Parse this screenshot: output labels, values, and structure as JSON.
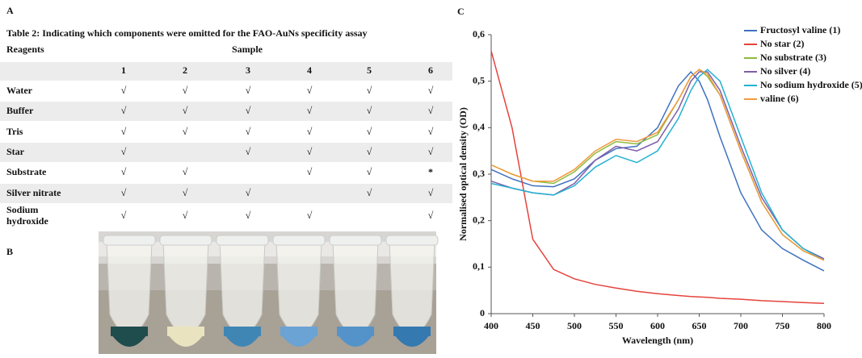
{
  "table": {
    "label": "A",
    "title": "Table 2: Indicating which components were omitted for the FAO-AuNs specificity assay",
    "row_header": "Reagents",
    "column_group": "Sample",
    "columns": [
      "1",
      "2",
      "3",
      "4",
      "5",
      "6"
    ],
    "rows": [
      {
        "name": "Water",
        "cells": [
          "√",
          "√",
          "√",
          "√",
          "√",
          "√"
        ]
      },
      {
        "name": "Buffer",
        "cells": [
          "√",
          "√",
          "√",
          "√",
          "√",
          "√"
        ]
      },
      {
        "name": "Tris",
        "cells": [
          "√",
          "√",
          "√",
          "√",
          "√",
          "√"
        ]
      },
      {
        "name": "Star",
        "cells": [
          "√",
          null,
          "√",
          "√",
          "√",
          "√"
        ]
      },
      {
        "name": "Substrate",
        "cells": [
          "√",
          "√",
          null,
          "√",
          "√",
          "*"
        ]
      },
      {
        "name": "Silver nitrate",
        "cells": [
          "√",
          "√",
          "√",
          null,
          "√",
          "√"
        ]
      },
      {
        "name": "Sodium hydroxide",
        "cells": [
          "√",
          "√",
          "√",
          "√",
          null,
          "√"
        ]
      }
    ]
  },
  "photo": {
    "label": "B"
  },
  "chart_data": {
    "type": "line",
    "label": "C",
    "x_label": "Wavelength (nm)",
    "y_label": "Normalised optical density (OD)",
    "x": [
      400,
      425,
      450,
      475,
      500,
      525,
      550,
      575,
      600,
      625,
      640,
      650,
      660,
      675,
      700,
      725,
      750,
      775,
      800
    ],
    "xlim": [
      400,
      800
    ],
    "xticks": [
      400,
      450,
      500,
      550,
      600,
      650,
      700,
      750,
      800
    ],
    "ylim": [
      0,
      0.6
    ],
    "yticks": [
      0,
      {
        "value": 0.1,
        "label": "0,1"
      },
      {
        "value": 0.2,
        "label": "0,2"
      },
      {
        "value": 0.3,
        "label": "0,3"
      },
      {
        "value": 0.4,
        "label": "0,4"
      },
      {
        "value": 0.5,
        "label": "0,5"
      },
      {
        "value": 0.6,
        "label": "0,6"
      }
    ],
    "grid": false,
    "legend": "top-right",
    "series": [
      {
        "name": "Fructosyl valine (1)",
        "color": "#3f72c0",
        "values": [
          0.31,
          0.29,
          0.275,
          0.273,
          0.29,
          0.33,
          0.355,
          0.36,
          0.4,
          0.49,
          0.52,
          0.5,
          0.46,
          0.38,
          0.26,
          0.18,
          0.14,
          0.115,
          0.092
        ]
      },
      {
        "name": "No star (2)",
        "color": "#e5433d",
        "values": [
          0.565,
          0.4,
          0.16,
          0.095,
          0.075,
          0.063,
          0.055,
          0.048,
          0.043,
          0.039,
          0.037,
          0.036,
          0.035,
          0.033,
          0.031,
          0.028,
          0.026,
          0.024,
          0.022
        ]
      },
      {
        "name": "No substrate (3)",
        "color": "#8dbb3e",
        "values": [
          0.32,
          0.3,
          0.285,
          0.28,
          0.305,
          0.345,
          0.37,
          0.365,
          0.385,
          0.46,
          0.51,
          0.525,
          0.51,
          0.47,
          0.35,
          0.24,
          0.17,
          0.135,
          0.115
        ]
      },
      {
        "name": "No silver (4)",
        "color": "#7e5ea8",
        "values": [
          0.285,
          0.27,
          0.26,
          0.255,
          0.28,
          0.33,
          0.36,
          0.35,
          0.37,
          0.44,
          0.5,
          0.52,
          0.52,
          0.48,
          0.36,
          0.25,
          0.18,
          0.14,
          0.118
        ]
      },
      {
        "name": "No sodium hydroxide (5)",
        "color": "#22b1d2",
        "values": [
          0.28,
          0.27,
          0.26,
          0.255,
          0.275,
          0.315,
          0.34,
          0.325,
          0.35,
          0.42,
          0.48,
          0.51,
          0.525,
          0.5,
          0.38,
          0.26,
          0.18,
          0.14,
          0.115
        ]
      },
      {
        "name": "valine (6)",
        "color": "#f29a3d",
        "values": [
          0.32,
          0.3,
          0.285,
          0.285,
          0.31,
          0.35,
          0.375,
          0.37,
          0.39,
          0.46,
          0.51,
          0.525,
          0.515,
          0.47,
          0.35,
          0.24,
          0.17,
          0.135,
          0.115
        ]
      }
    ]
  }
}
